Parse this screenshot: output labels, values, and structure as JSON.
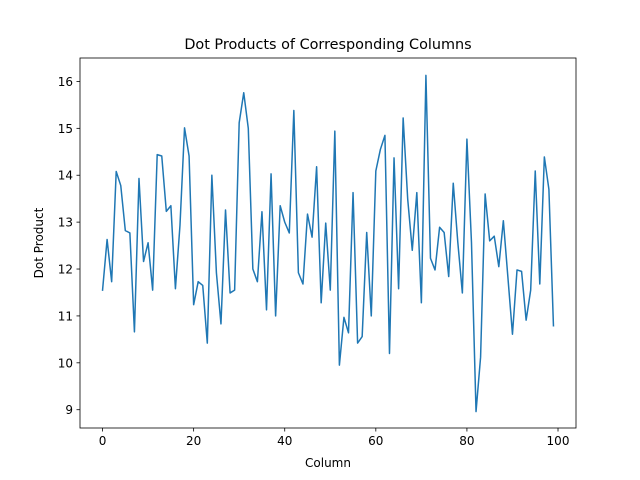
{
  "chart_data": {
    "type": "line",
    "title": "Dot Products of Corresponding Columns",
    "xlabel": "Column",
    "ylabel": "Dot Product",
    "xlim": [
      -4.95,
      103.95
    ],
    "ylim": [
      8.61,
      16.5
    ],
    "xticks": [
      0,
      20,
      40,
      60,
      80,
      100
    ],
    "yticks": [
      9,
      10,
      11,
      12,
      13,
      14,
      15,
      16
    ],
    "grid": false,
    "series": [
      {
        "color": "#1f77b4",
        "x": [
          0,
          1,
          2,
          3,
          4,
          5,
          6,
          7,
          8,
          9,
          10,
          11,
          12,
          13,
          14,
          15,
          16,
          17,
          18,
          19,
          20,
          21,
          22,
          23,
          24,
          25,
          26,
          27,
          28,
          29,
          30,
          31,
          32,
          33,
          34,
          35,
          36,
          37,
          38,
          39,
          40,
          41,
          42,
          43,
          44,
          45,
          46,
          47,
          48,
          49,
          50,
          51,
          52,
          53,
          54,
          55,
          56,
          57,
          58,
          59,
          60,
          61,
          62,
          63,
          64,
          65,
          66,
          67,
          68,
          69,
          70,
          71,
          72,
          73,
          74,
          75,
          76,
          77,
          78,
          79,
          80,
          81,
          82,
          83,
          84,
          85,
          86,
          87,
          88,
          89,
          90,
          91,
          92,
          93,
          94,
          95,
          96,
          97,
          98,
          99
        ],
        "values": [
          11.55,
          12.63,
          11.73,
          14.08,
          13.78,
          12.82,
          12.77,
          10.66,
          13.93,
          12.16,
          12.56,
          11.55,
          14.44,
          14.41,
          13.23,
          13.35,
          11.58,
          12.93,
          15.01,
          14.41,
          11.24,
          11.73,
          11.65,
          10.42,
          14.0,
          11.92,
          10.83,
          13.26,
          11.49,
          11.55,
          15.12,
          15.76,
          15.0,
          12.0,
          11.73,
          13.22,
          11.13,
          14.03,
          11.0,
          13.35,
          13.0,
          12.77,
          15.38,
          11.92,
          11.68,
          13.17,
          12.68,
          14.18,
          11.28,
          12.98,
          11.55,
          14.94,
          9.95,
          10.97,
          10.64,
          13.63,
          10.42,
          10.56,
          12.78,
          11.0,
          14.09,
          14.55,
          14.85,
          10.2,
          14.37,
          11.58,
          15.22,
          13.49,
          12.4,
          13.63,
          11.28,
          16.13,
          12.23,
          11.98,
          12.89,
          12.78,
          11.84,
          13.83,
          12.57,
          11.49,
          14.77,
          12.57,
          8.96,
          10.12,
          13.6,
          12.6,
          12.7,
          12.05,
          13.03,
          11.82,
          10.61,
          11.98,
          11.95,
          10.91,
          11.55,
          14.09,
          11.68,
          14.39,
          13.7,
          10.79
        ]
      }
    ]
  }
}
